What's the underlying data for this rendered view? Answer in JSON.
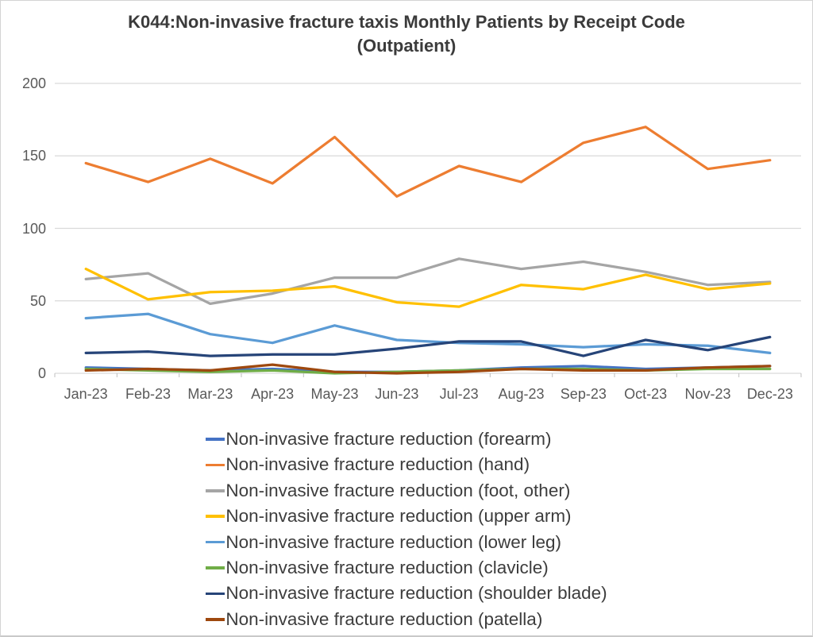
{
  "colors": {
    "background": "#FFFFFF",
    "border": "#D4D4D4",
    "gridline": "#D9D9D9",
    "tick": "#BFBFBF",
    "axis_text": "#595959",
    "title_text": "#3B3B3B",
    "legend_text": "#3D3D3D"
  },
  "chart_data": {
    "type": "line",
    "title": "K044:Non-invasive fracture taxis Monthly Patients by Receipt Code (Outpatient)",
    "xlabel": "",
    "ylabel": "",
    "ylim": [
      0,
      200
    ],
    "yticks": [
      0,
      50,
      100,
      150,
      200
    ],
    "grid": true,
    "legend_position": "bottom",
    "categories": [
      "Jan-23",
      "Feb-23",
      "Mar-23",
      "Apr-23",
      "May-23",
      "Jun-23",
      "Jul-23",
      "Aug-23",
      "Sep-23",
      "Oct-23",
      "Nov-23",
      "Dec-23"
    ],
    "series": [
      {
        "id": "forearm",
        "name": "Non-invasive fracture reduction (forearm)",
        "color": "#4472C4",
        "values": [
          4,
          3,
          2,
          3,
          1,
          1,
          2,
          4,
          5,
          3,
          4,
          5
        ]
      },
      {
        "id": "hand",
        "name": "Non-invasive fracture reduction (hand)",
        "color": "#ED7D31",
        "values": [
          145,
          132,
          148,
          131,
          163,
          122,
          143,
          132,
          159,
          170,
          141,
          147
        ]
      },
      {
        "id": "foot-other",
        "name": "Non-invasive fracture reduction (foot, other)",
        "color": "#A5A5A5",
        "values": [
          65,
          69,
          48,
          55,
          66,
          66,
          79,
          72,
          77,
          70,
          61,
          63
        ]
      },
      {
        "id": "upper-arm",
        "name": "Non-invasive fracture reduction (upper arm)",
        "color": "#FFC000",
        "values": [
          72,
          51,
          56,
          57,
          60,
          49,
          46,
          61,
          58,
          68,
          58,
          62
        ]
      },
      {
        "id": "lower-leg",
        "name": "Non-invasive fracture reduction (lower leg)",
        "color": "#5B9BD5",
        "values": [
          38,
          41,
          27,
          21,
          33,
          23,
          21,
          20,
          18,
          20,
          19,
          14
        ]
      },
      {
        "id": "clavicle",
        "name": "Non-invasive fracture reduction (clavicle)",
        "color": "#70AD47",
        "values": [
          3,
          2,
          1,
          2,
          0,
          1,
          2,
          3,
          3,
          2,
          3,
          3
        ]
      },
      {
        "id": "shoulder-blade",
        "name": "Non-invasive fracture reduction (shoulder blade)",
        "color": "#264478",
        "values": [
          14,
          15,
          12,
          13,
          13,
          17,
          22,
          22,
          12,
          23,
          16,
          25
        ]
      },
      {
        "id": "patella",
        "name": "Non-invasive fracture reduction (patella)",
        "color": "#9E480E",
        "values": [
          2,
          3,
          2,
          6,
          1,
          0,
          1,
          3,
          2,
          2,
          4,
          5
        ]
      }
    ]
  }
}
